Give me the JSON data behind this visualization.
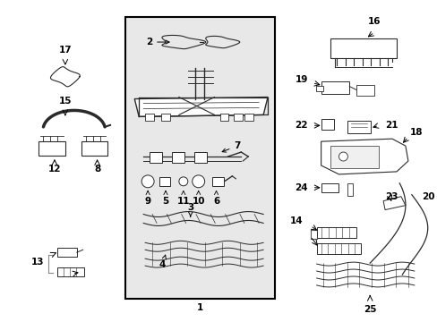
{
  "background_color": "#ffffff",
  "box_bg": "#e8e8e8",
  "box_border": "#000000",
  "label_fontsize": 7.5,
  "darkgray": "#2a2a2a",
  "lw": 0.7
}
